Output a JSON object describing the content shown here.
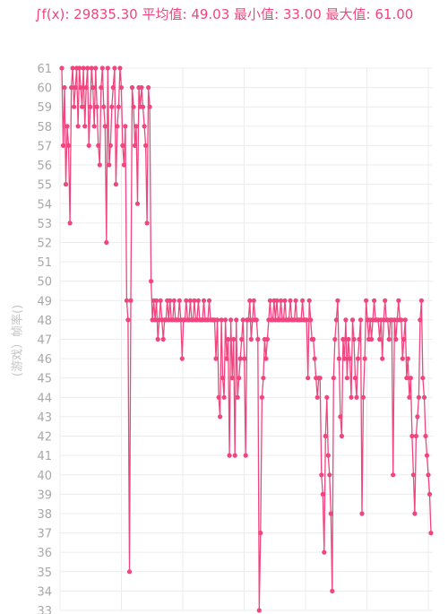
{
  "stats_text": "∫f(x): 29835.30 平均值: 49.03 最小值: 33.00 最大值: 61.00",
  "chart_data": {
    "type": "line",
    "ylabel": "(游戏）帧率()",
    "ylim": [
      33,
      61
    ],
    "y_ticks": [
      33,
      34,
      35,
      36,
      37,
      38,
      39,
      40,
      41,
      42,
      43,
      44,
      45,
      46,
      47,
      48,
      49,
      50,
      51,
      52,
      53,
      54,
      55,
      56,
      57,
      58,
      59,
      60,
      61
    ],
    "grid": true,
    "series": [
      {
        "color": "#f0457f",
        "values": [
          61,
          57,
          60,
          55,
          58,
          57,
          53,
          60,
          61,
          59,
          60,
          61,
          58,
          61,
          60,
          59,
          61,
          58,
          60,
          61,
          57,
          59,
          61,
          60,
          58,
          61,
          59,
          57,
          56,
          60,
          61,
          59,
          58,
          52,
          61,
          56,
          57,
          59,
          60,
          61,
          55,
          58,
          59,
          61,
          60,
          57,
          56,
          58,
          49,
          48,
          35,
          49,
          60,
          59,
          57,
          58,
          54,
          60,
          59,
          60,
          59,
          58,
          57,
          53,
          60,
          59,
          50,
          48,
          49,
          48,
          49,
          47,
          48,
          49,
          48,
          47,
          48,
          48,
          49,
          48,
          49,
          48,
          48,
          49,
          48,
          48,
          48,
          49,
          48,
          46,
          48,
          48,
          49,
          48,
          48,
          49,
          48,
          48,
          49,
          48,
          48,
          49,
          48,
          48,
          48,
          49,
          48,
          48,
          48,
          49,
          48,
          48,
          48,
          48,
          46,
          48,
          44,
          43,
          48,
          45,
          44,
          48,
          46,
          47,
          41,
          48,
          45,
          47,
          41,
          48,
          44,
          45,
          46,
          47,
          48,
          46,
          41,
          48,
          48,
          49,
          47,
          48,
          49,
          48,
          48,
          47,
          33,
          37,
          44,
          45,
          47,
          46,
          47,
          48,
          49,
          48,
          48,
          49,
          48,
          49,
          48,
          48,
          49,
          48,
          48,
          49,
          48,
          48,
          48,
          49,
          48,
          48,
          48,
          49,
          48,
          48,
          48,
          48,
          49,
          48,
          48,
          48,
          45,
          49,
          48,
          47,
          47,
          46,
          45,
          44,
          45,
          45,
          40,
          39,
          36,
          42,
          44,
          41,
          40,
          38,
          34,
          45,
          47,
          48,
          49,
          46,
          43,
          42,
          47,
          46,
          48,
          45,
          47,
          46,
          44,
          48,
          47,
          45,
          44,
          46,
          47,
          48,
          38,
          44,
          46,
          49,
          48,
          47,
          48,
          47,
          48,
          49,
          48,
          48,
          48,
          47,
          48,
          46,
          48,
          49,
          48,
          48,
          47,
          48,
          48,
          40,
          48,
          47,
          48,
          49,
          48,
          48,
          46,
          47,
          48,
          45,
          46,
          44,
          45,
          42,
          40,
          38,
          42,
          43,
          44,
          48,
          49,
          45,
          44,
          42,
          41,
          40,
          39,
          37
        ]
      }
    ]
  }
}
